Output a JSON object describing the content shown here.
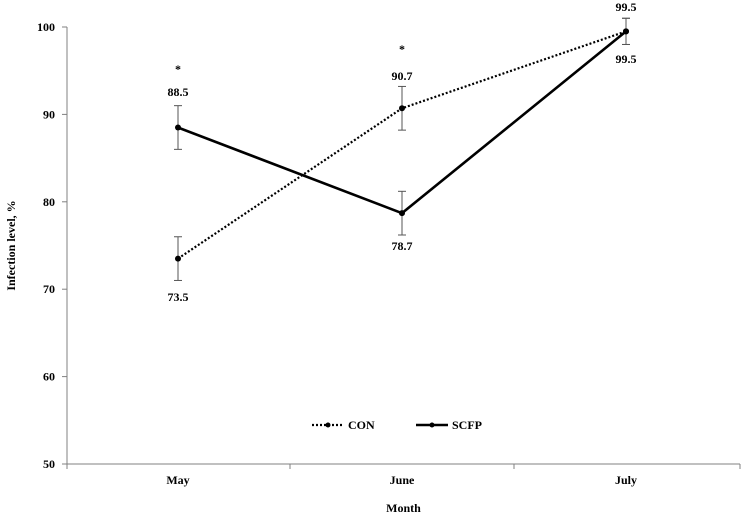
{
  "chart_data": {
    "type": "line",
    "categories": [
      "May",
      "June",
      "July"
    ],
    "xlabel": "Month",
    "ylabel": "Infection level, %",
    "ylim": [
      50,
      100
    ],
    "yticks": [
      50,
      60,
      70,
      80,
      90,
      100
    ],
    "grid": false,
    "legend_position": "bottom-center",
    "series": [
      {
        "name": "CON",
        "style": "dotted",
        "color": "#000000",
        "values": [
          73.5,
          90.7,
          99.5
        ],
        "labels": [
          "73.5",
          "90.7",
          "99.5"
        ],
        "error": [
          2.5,
          2.5,
          1.5
        ]
      },
      {
        "name": "SCFP",
        "style": "solid",
        "color": "#000000",
        "values": [
          88.5,
          78.7,
          99.5
        ],
        "labels": [
          "88.5",
          "78.7",
          "99.5"
        ],
        "error": [
          2.5,
          2.5,
          1.5
        ]
      }
    ],
    "significance": [
      {
        "category": "May",
        "mark": "*"
      },
      {
        "category": "June",
        "mark": "*"
      }
    ]
  }
}
